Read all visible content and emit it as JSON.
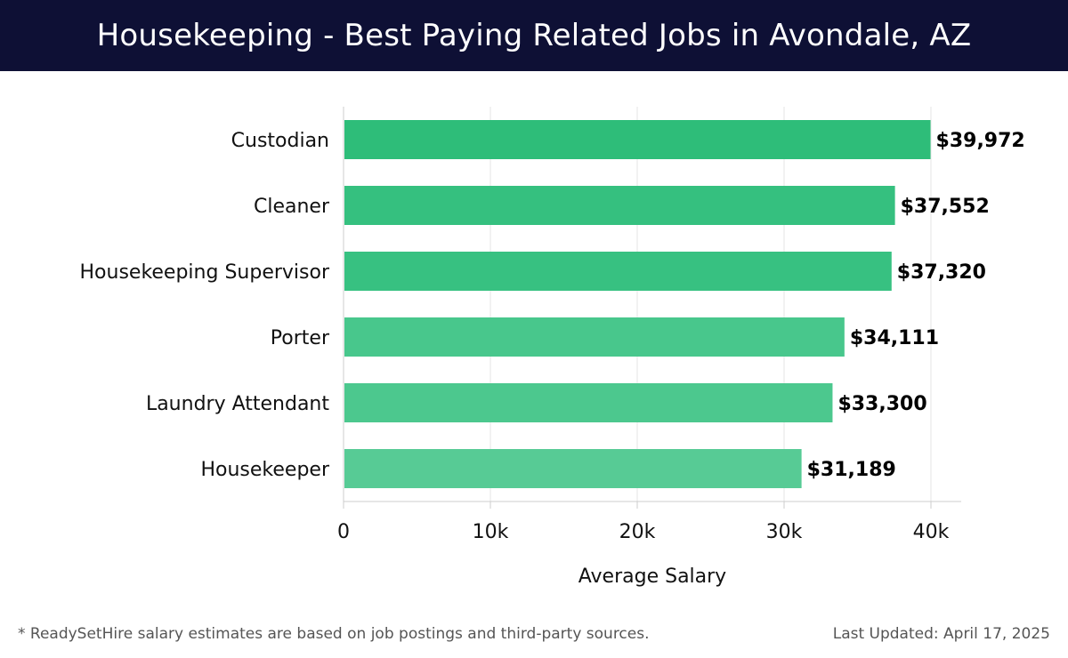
{
  "header": {
    "title": "Housekeeping - Best Paying Related Jobs in Avondale, AZ"
  },
  "chart_data": {
    "type": "bar",
    "orientation": "horizontal",
    "categories": [
      "Custodian",
      "Cleaner",
      "Housekeeping Supervisor",
      "Porter",
      "Laundry Attendant",
      "Housekeeper"
    ],
    "values": [
      39972,
      37552,
      37320,
      34111,
      33300,
      31189
    ],
    "value_labels": [
      "$39,972",
      "$37,552",
      "$37,320",
      "$34,111",
      "$33,300",
      "$31,189"
    ],
    "bar_colors": [
      "#2ebd79",
      "#35c07f",
      "#37c181",
      "#48c78c",
      "#4cc88e",
      "#57cb95"
    ],
    "xlabel": "Average Salary",
    "ylabel": "",
    "xlim": [
      0,
      42000
    ],
    "xticks": [
      0,
      10000,
      20000,
      30000,
      40000
    ],
    "xtick_labels": [
      "0",
      "10k",
      "20k",
      "30k",
      "40k"
    ],
    "grid": true,
    "legend": "none"
  },
  "footer": {
    "note": "* ReadySetHire salary estimates are based on job postings and third-party sources.",
    "updated": "Last Updated: April 17, 2025"
  }
}
